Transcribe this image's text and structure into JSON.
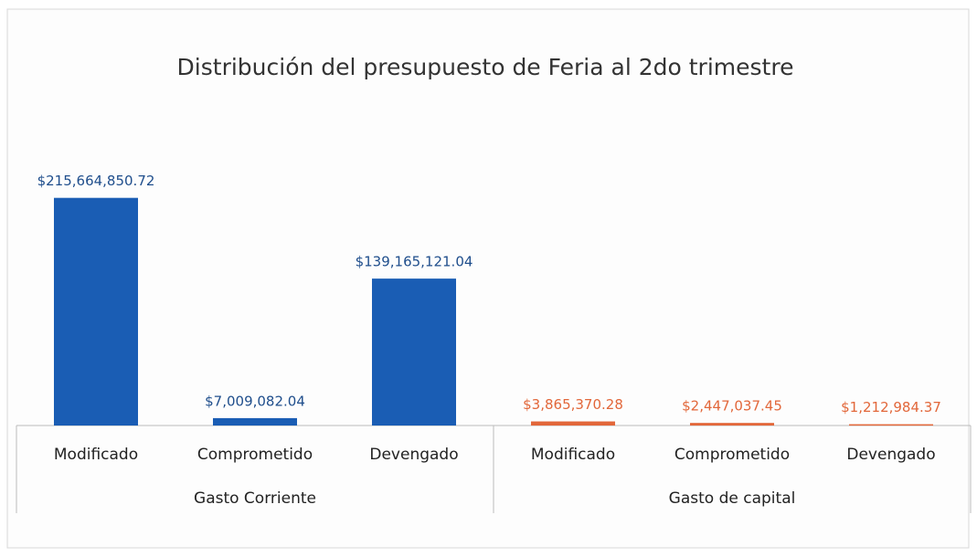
{
  "chart_data": {
    "type": "bar",
    "title": "Distribución del presupuesto de Feria al 2do trimestre",
    "series": [
      {
        "name": "Gasto Corriente",
        "color": "#1a5db4",
        "categories": [
          "Modificado",
          "Comprometido",
          "Devengado"
        ],
        "values": [
          215664850.72,
          7009082.04,
          139165121.04
        ],
        "value_labels": [
          "$215,664,850.72",
          "$7,009,082.04",
          "$139,165,121.04"
        ]
      },
      {
        "name": "Gasto de capital",
        "color": "#e2673a",
        "categories": [
          "Modificado",
          "Comprometido",
          "Devengado"
        ],
        "values": [
          3865370.28,
          2447037.45,
          1212984.37
        ],
        "value_labels": [
          "$3,865,370.28",
          "$2,447,037.45",
          "$1,212,984.37"
        ]
      }
    ],
    "ylim": [
      0,
      250000000
    ]
  }
}
